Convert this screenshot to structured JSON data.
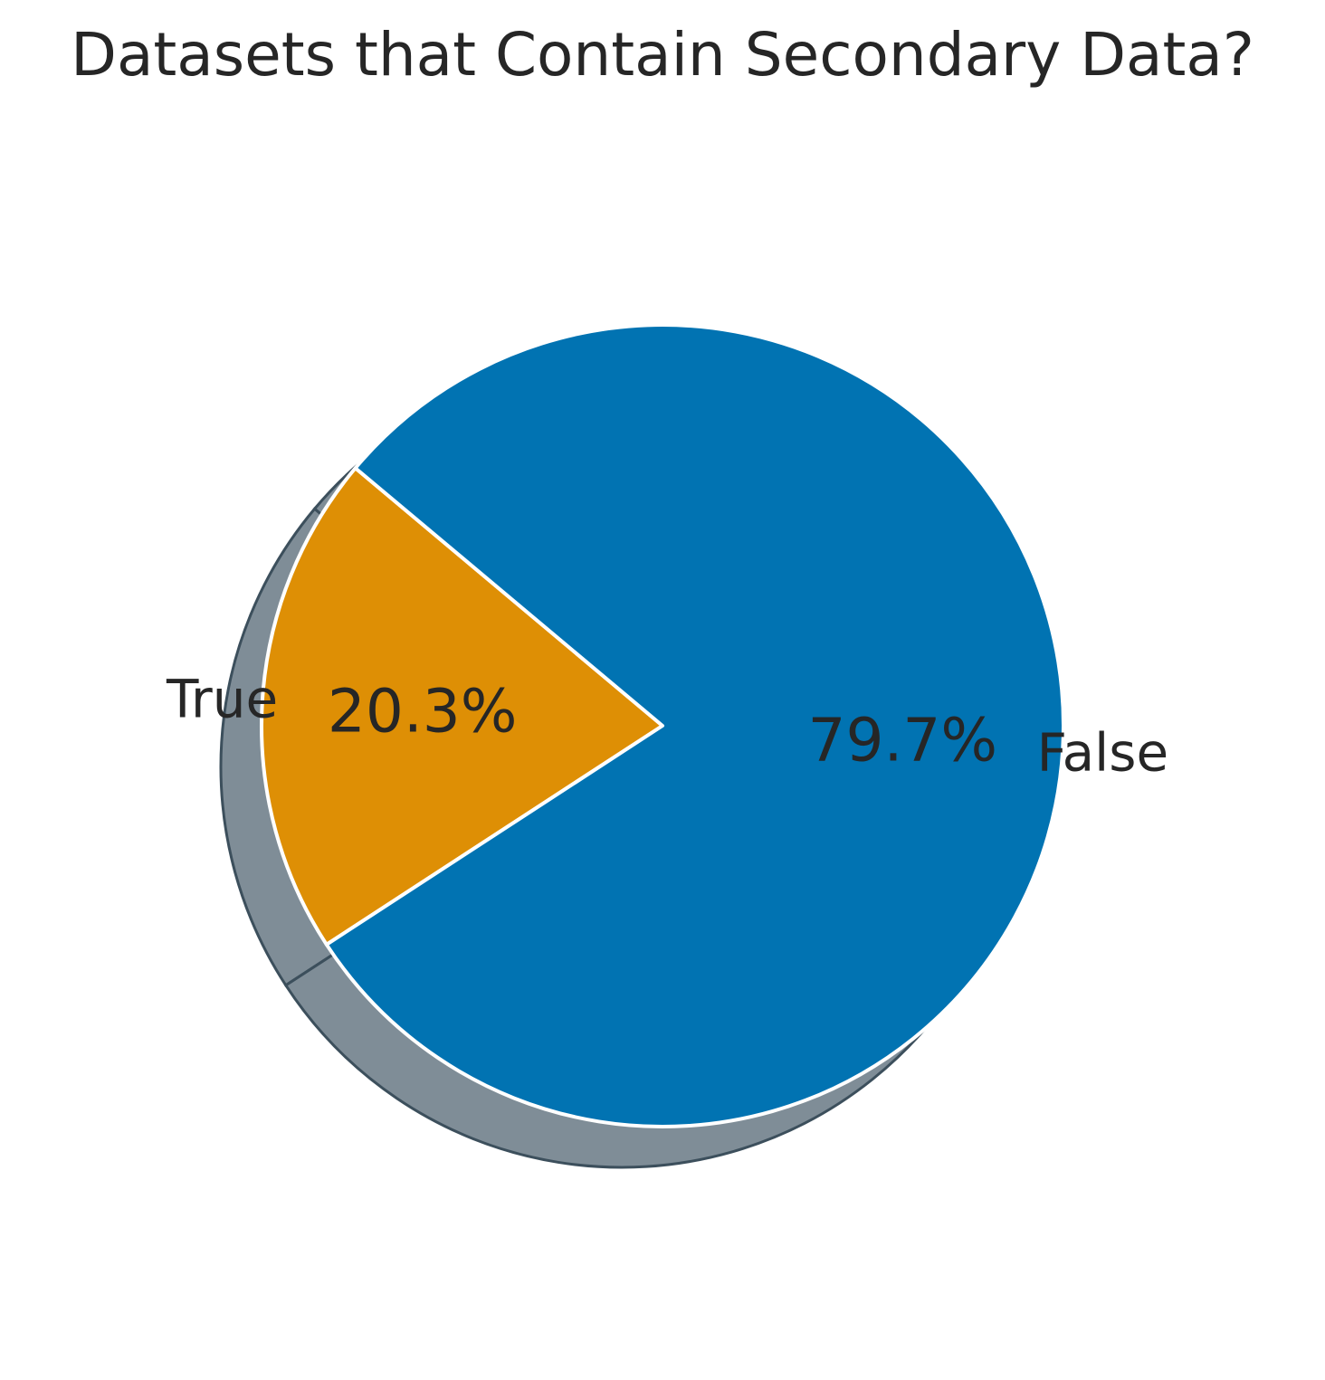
{
  "chart_data": {
    "type": "pie",
    "title": "Datasets that Contain Secondary Data?",
    "slices": [
      {
        "label": "True",
        "value": 20.3,
        "pct_label": "20.3%",
        "color": "#de8f05"
      },
      {
        "label": "False",
        "value": 79.7,
        "pct_label": "79.7%",
        "color": "#0173b2"
      }
    ],
    "start_angle_deg": 140,
    "shadow": true,
    "shadow_color": "#5f707d",
    "edge_color": "#ffffff"
  }
}
